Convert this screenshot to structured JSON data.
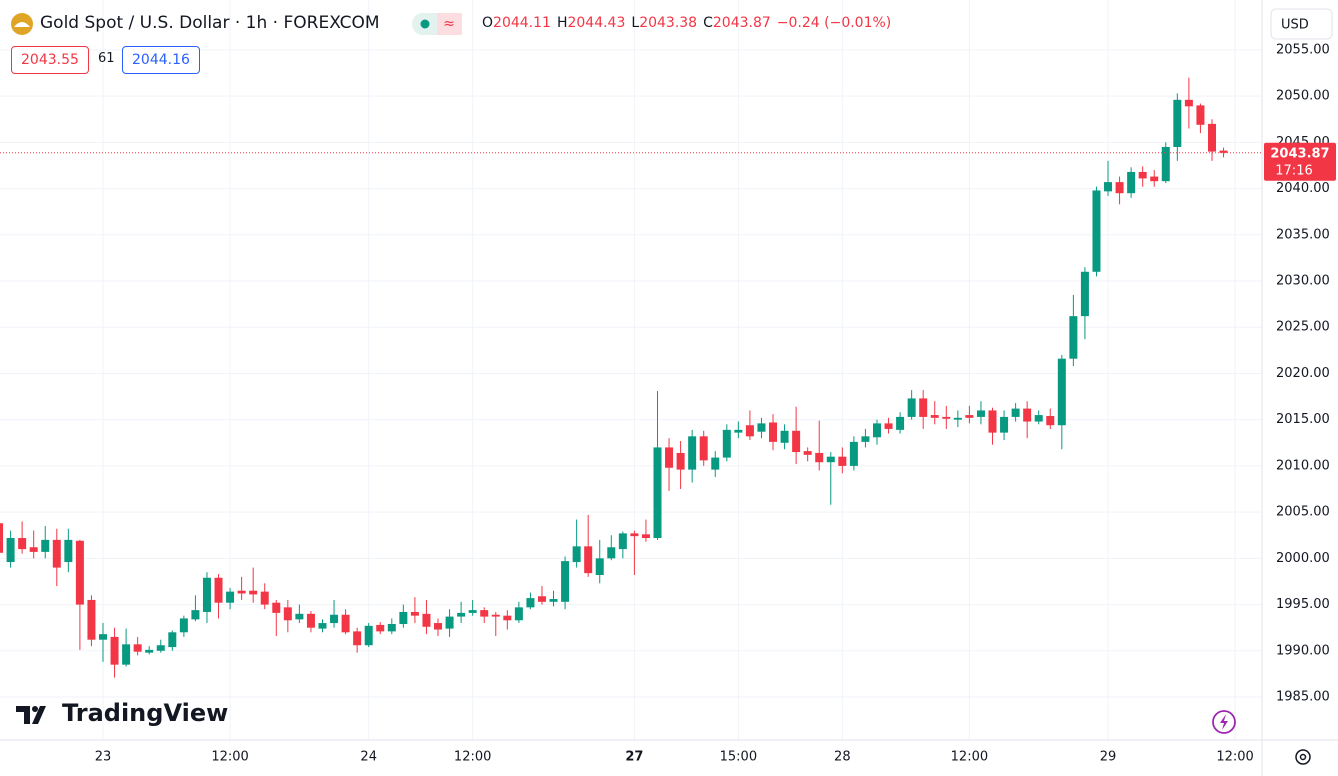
{
  "header": {
    "ohlc_labels": [
      "O",
      "H",
      "L",
      "C"
    ],
    "change": "−0.24 (−0.01%)",
    "bid": 2043.55,
    "spread": 61,
    "ask": 2044.16,
    "currency": "USD",
    "watermark": "TradingView"
  },
  "chart_data": {
    "type": "candlestick",
    "title": "Gold Spot / U.S. Dollar · 1h · FOREXCOM",
    "categories": [
      null,
      null,
      null,
      null,
      null,
      null,
      null,
      null,
      null,
      "23",
      null,
      null,
      null,
      null,
      null,
      null,
      null,
      null,
      null,
      null,
      "12:00",
      null,
      null,
      null,
      null,
      null,
      null,
      null,
      null,
      null,
      null,
      null,
      "24",
      null,
      null,
      null,
      null,
      null,
      null,
      null,
      null,
      "12:00",
      null,
      null,
      null,
      null,
      null,
      null,
      null,
      null,
      null,
      null,
      null,
      null,
      null,
      "27",
      null,
      null,
      null,
      null,
      null,
      null,
      null,
      null,
      "15:00",
      null,
      null,
      null,
      null,
      null,
      null,
      null,
      null,
      "28",
      null,
      null,
      null,
      null,
      null,
      null,
      null,
      null,
      null,
      null,
      "12:00",
      null,
      null,
      null,
      null,
      null,
      null,
      null,
      null,
      null,
      null,
      null,
      "29",
      null,
      null,
      null,
      null,
      null,
      null,
      null,
      null,
      null,
      null,
      "12:00"
    ],
    "open": [
      2003.8,
      1999.6,
      2002.2,
      2001.2,
      2000.7,
      2002.0,
      1999.6,
      2001.9,
      1995.5,
      1991.2,
      1991.5,
      1988.5,
      1990.7,
      1989.8,
      1990.0,
      1990.4,
      1992.0,
      1993.4,
      1994.2,
      1997.9,
      1995.2,
      1996.5,
      1996.5,
      1996.4,
      1995.2,
      1994.7,
      1993.4,
      1994.0,
      1992.4,
      1993.0,
      1993.9,
      1992.1,
      1990.6,
      1992.8,
      1992.1,
      1992.9,
      1994.2,
      1994.0,
      1993.0,
      1992.4,
      1993.7,
      1994.1,
      1994.4,
      1993.9,
      1993.8,
      1993.3,
      1994.7,
      1995.9,
      1995.3,
      1995.3,
      1999.6,
      2001.3,
      1998.2,
      2000.0,
      2001.0,
      2002.7,
      2002.6,
      2002.2,
      2012.0,
      2011.4,
      2009.6,
      2013.2,
      2009.6,
      2010.9,
      2013.6,
      2014.4,
      2013.7,
      2014.7,
      2012.5,
      2013.8,
      2011.6,
      2011.4,
      2010.4,
      2011.0,
      2010.0,
      2012.6,
      2013.1,
      2014.6,
      2013.9,
      2015.3,
      2017.3,
      2015.5,
      2015.3,
      2015.0,
      2015.5,
      2015.3,
      2016.0,
      2013.6,
      2015.3,
      2016.2,
      2014.8,
      2015.4,
      2014.4,
      2021.6,
      2026.2,
      2031.0,
      2039.7,
      2040.7,
      2039.5,
      2041.8,
      2041.3,
      2040.8,
      2044.5,
      2049.6,
      2049.0,
      2047.0,
      2044.11,
      null
    ],
    "high": [
      2003.8,
      2003.0,
      2004.0,
      2003.0,
      2003.5,
      2003.2,
      2003.2,
      2002.0,
      1996.0,
      1993.0,
      1992.5,
      1992.4,
      1991.5,
      1990.5,
      1991.2,
      1992.2,
      1993.8,
      1996.0,
      1998.5,
      1998.3,
      1996.8,
      1998.0,
      1999.0,
      1997.3,
      1995.5,
      1995.5,
      1995.0,
      1994.3,
      1993.4,
      1995.5,
      1994.5,
      1992.5,
      1993.0,
      1993.1,
      1993.5,
      1995.0,
      1995.8,
      1995.5,
      1993.5,
      1994.5,
      1995.3,
      1995.5,
      1994.7,
      1994.2,
      1994.4,
      1995.3,
      1996.3,
      1997.0,
      1996.5,
      2000.2,
      2004.2,
      2004.7,
      2002.0,
      2002.5,
      2002.9,
      2003.0,
      2004.2,
      2018.1,
      2013.0,
      2012.7,
      2013.9,
      2013.8,
      2011.6,
      2014.5,
      2014.8,
      2016.0,
      2015.2,
      2015.6,
      2014.5,
      2016.4,
      2012.0,
      2014.9,
      2011.5,
      2012.0,
      2013.2,
      2014.0,
      2015.0,
      2015.2,
      2015.8,
      2018.2,
      2018.2,
      2017.0,
      2016.5,
      2016.0,
      2016.5,
      2017.0,
      2016.3,
      2016.0,
      2016.8,
      2017.0,
      2016.0,
      2016.2,
      2022.0,
      2028.5,
      2031.5,
      2040.2,
      2043.0,
      2041.3,
      2042.3,
      2042.4,
      2042.0,
      2045.0,
      2050.3,
      2052.0,
      2049.2,
      2047.5,
      2044.43,
      null
    ],
    "low": [
      1999.5,
      1999.0,
      2000.5,
      2000.0,
      2000.0,
      1997.0,
      1998.5,
      1990.1,
      1990.5,
      1988.8,
      1987.1,
      1988.3,
      1989.5,
      1989.6,
      1989.8,
      1990.0,
      1991.5,
      1993.2,
      1993.0,
      1993.5,
      1994.5,
      1995.5,
      1995.2,
      1994.5,
      1991.6,
      1992.0,
      1993.0,
      1992.0,
      1992.0,
      1992.5,
      1991.8,
      1989.8,
      1990.4,
      1991.8,
      1991.8,
      1992.5,
      1993.0,
      1991.8,
      1991.6,
      1991.5,
      1993.0,
      1993.8,
      1993.0,
      1991.6,
      1992.3,
      1993.0,
      1994.5,
      1995.0,
      1994.8,
      1994.5,
      1999.0,
      1998.0,
      1997.3,
      1999.8,
      2000.0,
      1998.2,
      2001.8,
      2002.0,
      2007.3,
      2007.5,
      2008.2,
      2010.0,
      2008.8,
      2010.5,
      2013.0,
      2012.8,
      2013.0,
      2011.7,
      2011.8,
      2010.2,
      2010.5,
      2009.5,
      2005.8,
      2009.2,
      2009.5,
      2012.0,
      2012.3,
      2013.5,
      2013.5,
      2015.0,
      2014.0,
      2014.5,
      2014.0,
      2014.2,
      2014.6,
      2014.5,
      2012.3,
      2012.8,
      2014.8,
      2013.0,
      2014.5,
      2014.0,
      2011.8,
      2020.8,
      2023.7,
      2030.5,
      2039.2,
      2038.3,
      2039.0,
      2040.2,
      2040.2,
      2040.6,
      2043.0,
      2046.5,
      2046.0,
      2043.0,
      2043.38,
      null
    ],
    "close": [
      2000.6,
      2002.2,
      2001.0,
      2000.7,
      2002.0,
      1999.0,
      2002.0,
      1995.0,
      1991.2,
      1991.8,
      1988.5,
      1990.7,
      1989.9,
      1990.1,
      1990.6,
      1992.0,
      1993.5,
      1994.4,
      1997.9,
      1995.2,
      1996.4,
      1996.2,
      1996.1,
      1995.0,
      1994.1,
      1993.3,
      1994.0,
      1992.5,
      1993.0,
      1993.9,
      1992.0,
      1990.6,
      1992.7,
      1992.1,
      1992.9,
      1994.2,
      1993.8,
      1992.6,
      1992.3,
      1993.7,
      1994.1,
      1994.4,
      1993.7,
      1993.7,
      1993.3,
      1994.7,
      1995.7,
      1995.3,
      1995.6,
      1999.7,
      2001.3,
      1998.4,
      2000.0,
      2001.2,
      2002.7,
      2002.4,
      2002.2,
      2012.0,
      2009.8,
      2009.6,
      2013.2,
      2010.6,
      2010.9,
      2013.9,
      2013.9,
      2013.2,
      2014.6,
      2012.6,
      2013.8,
      2011.5,
      2011.2,
      2010.4,
      2011.0,
      2010.0,
      2012.6,
      2013.2,
      2014.6,
      2014.0,
      2015.3,
      2017.3,
      2015.3,
      2015.2,
      2015.1,
      2015.2,
      2015.2,
      2016.0,
      2013.6,
      2015.3,
      2016.2,
      2014.8,
      2015.5,
      2014.4,
      2021.6,
      2026.2,
      2031.0,
      2039.8,
      2040.7,
      2039.5,
      2041.8,
      2041.1,
      2040.8,
      2044.5,
      2049.6,
      2048.9,
      2046.9,
      2044.0,
      2043.87,
      null
    ],
    "up_color": "#089981",
    "down_color": "#f23645",
    "grid": true,
    "countdown": "17:16",
    "ylim": [
      1980.35,
      2060.4
    ],
    "yticks": [
      {
        "value": 1985,
        "label": "1985.00"
      },
      {
        "value": 1990,
        "label": "1990.00"
      },
      {
        "value": 1995,
        "label": "1995.00"
      },
      {
        "value": 2000,
        "label": "2000.00"
      },
      {
        "value": 2005,
        "label": "2005.00"
      },
      {
        "value": 2010,
        "label": "2010.00"
      },
      {
        "value": 2015,
        "label": "2015.00"
      },
      {
        "value": 2020,
        "label": "2020.00"
      },
      {
        "value": 2025,
        "label": "2025.00"
      },
      {
        "value": 2030,
        "label": "2030.00"
      },
      {
        "value": 2035,
        "label": "2035.00"
      },
      {
        "value": 2040,
        "label": "2040.00"
      },
      {
        "value": 2045,
        "label": "2045.00"
      },
      {
        "value": 2050,
        "label": "2050.00"
      },
      {
        "value": 2055,
        "label": "2055.00"
      }
    ]
  }
}
